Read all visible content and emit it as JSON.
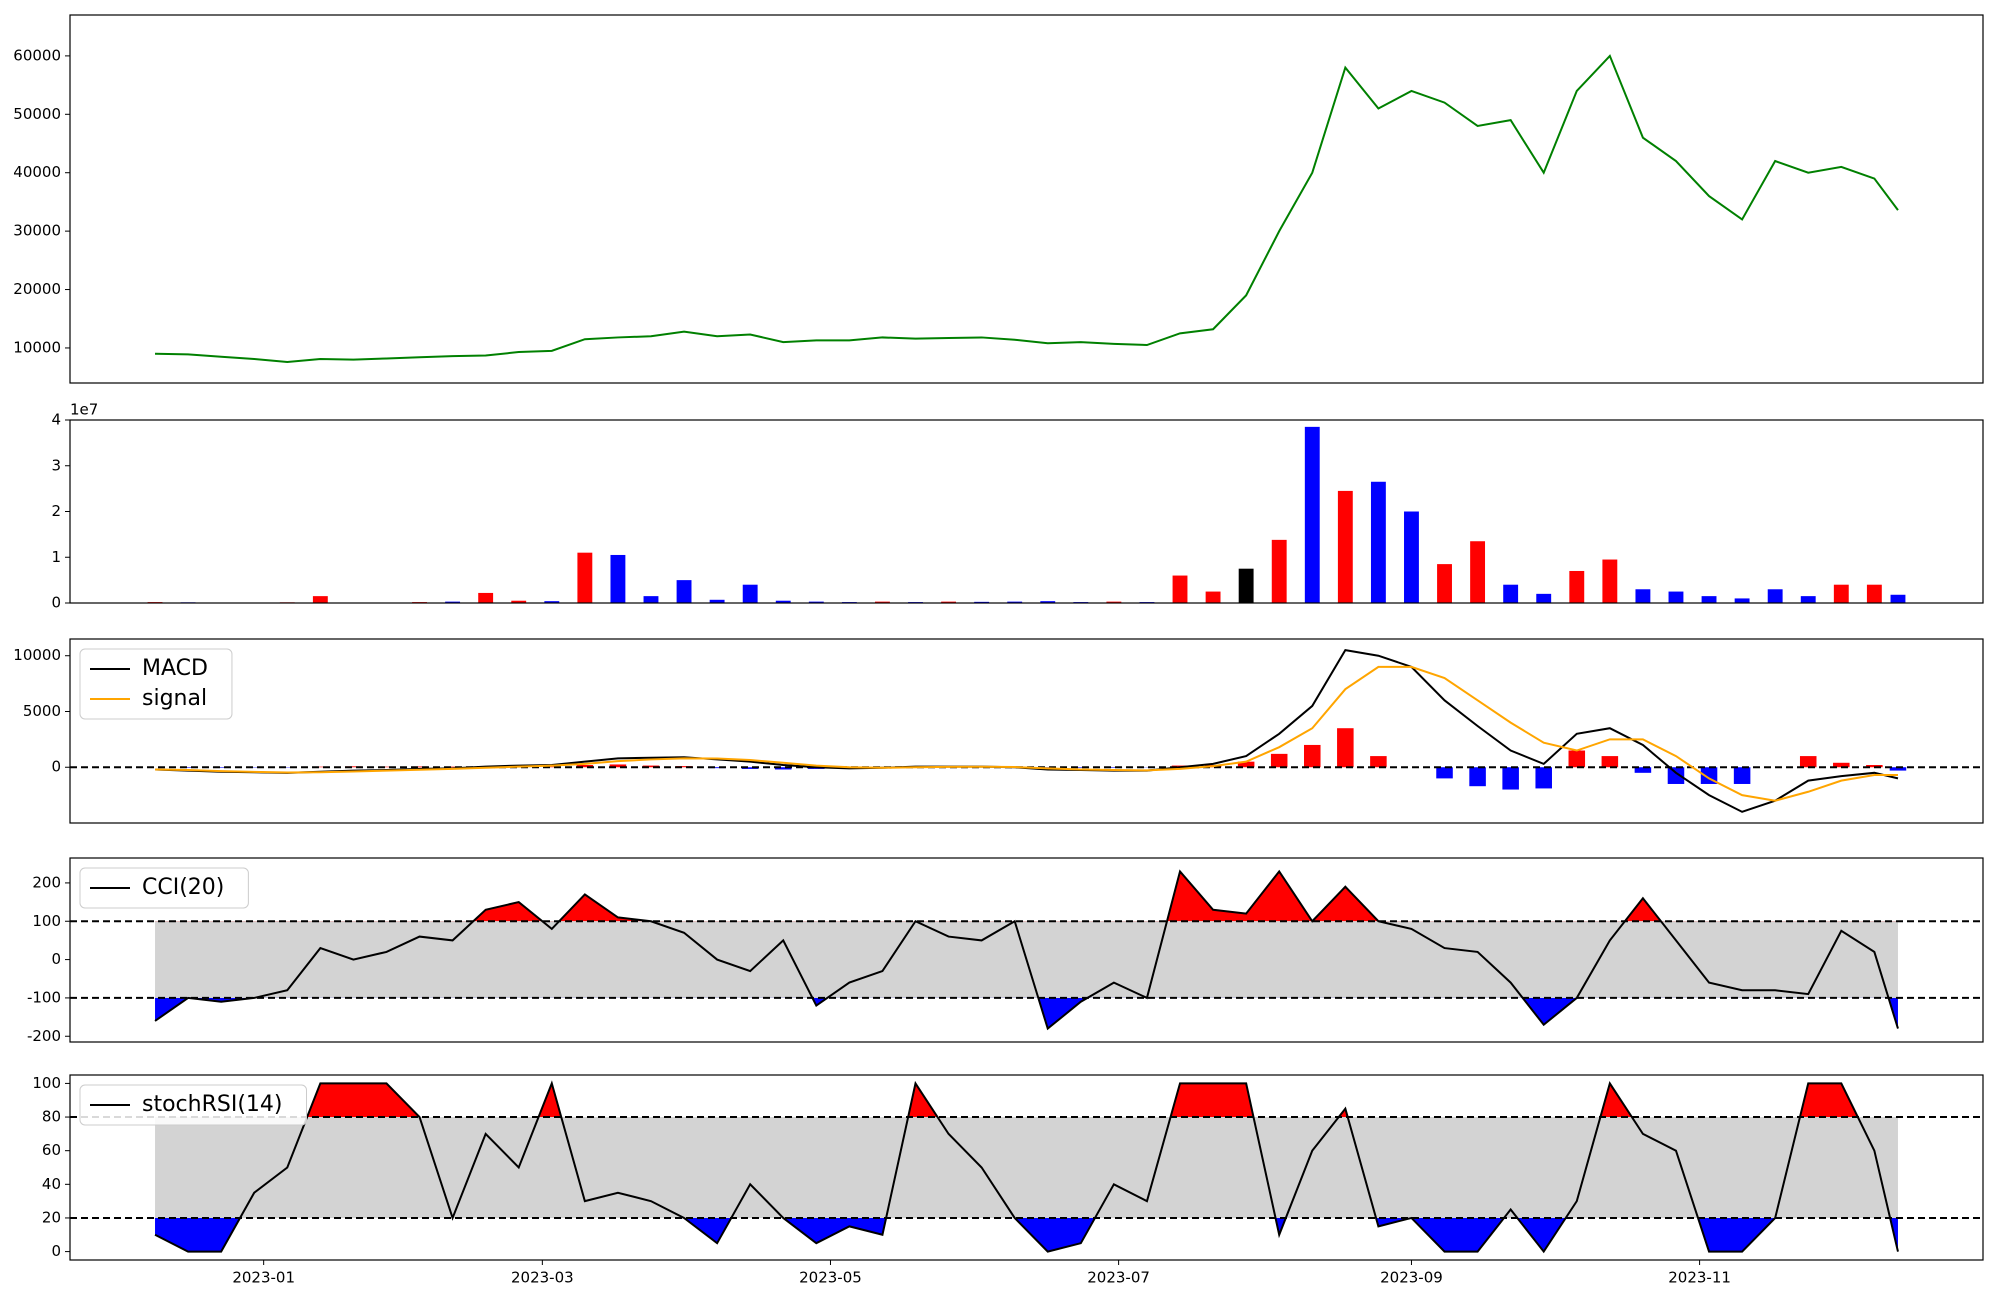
{
  "chart_data": [
    {
      "type": "line",
      "x": [
        -23,
        -16,
        -9,
        -2,
        5,
        12,
        19,
        26,
        33,
        40,
        47,
        54,
        61,
        68,
        75,
        82,
        89,
        96,
        103,
        110,
        117,
        124,
        131,
        138,
        145,
        152,
        159,
        166,
        173,
        180,
        187,
        194,
        201,
        208,
        215,
        222,
        229,
        236,
        243,
        250,
        257,
        264,
        271,
        278,
        285,
        292,
        299,
        306,
        313,
        320,
        327,
        334,
        341,
        346
      ],
      "series": [
        {
          "color": "green",
          "values": [
            9000,
            8900,
            8500,
            8100,
            7600,
            8100,
            8000,
            8200,
            8400,
            8600,
            8700,
            9300,
            9500,
            11500,
            11800,
            12000,
            12800,
            12000,
            12300,
            11000,
            11300,
            11300,
            11800,
            11600,
            11700,
            11800,
            11400,
            10800,
            11000,
            10700,
            10500,
            12500,
            13200,
            19000,
            30000,
            40000,
            58000,
            51000,
            54000,
            52000,
            48000,
            49000,
            40000,
            54000,
            60000,
            46000,
            42000,
            36000,
            32000,
            42000,
            40000,
            41000,
            39000,
            33600
          ]
        }
      ],
      "xlim": [
        -41,
        364
      ],
      "ylim": [
        4000,
        67000
      ],
      "yticks": [
        10000,
        20000,
        30000,
        40000,
        50000,
        60000
      ]
    },
    {
      "type": "bar",
      "x": [
        -23,
        -16,
        -9,
        -2,
        5,
        12,
        19,
        26,
        33,
        40,
        47,
        54,
        61,
        68,
        75,
        82,
        89,
        96,
        103,
        110,
        117,
        124,
        131,
        138,
        145,
        152,
        159,
        166,
        173,
        180,
        187,
        194,
        201,
        208,
        215,
        222,
        229,
        236,
        243,
        250,
        257,
        264,
        271,
        278,
        285,
        292,
        299,
        306,
        313,
        320,
        327,
        334,
        341,
        346
      ],
      "values": [
        200000,
        150000,
        100000,
        100000,
        150000,
        1500000,
        100000,
        100000,
        200000,
        300000,
        2200000,
        500000,
        400000,
        11000000,
        10500000,
        1500000,
        5000000,
        700000,
        4000000,
        500000,
        300000,
        200000,
        300000,
        200000,
        300000,
        250000,
        300000,
        400000,
        200000,
        300000,
        200000,
        6000000,
        2500000,
        7500000,
        13800000,
        38500000,
        24500000,
        26500000,
        20000000,
        8500000,
        13500000,
        4000000,
        2000000,
        7000000,
        9500000,
        3000000,
        2500000,
        1500000,
        1000000,
        3000000,
        1500000,
        4000000,
        4000000,
        1800000
      ],
      "colors": [
        "red",
        "blue",
        "red",
        "blue",
        "red",
        "red",
        "blue",
        "red",
        "red",
        "blue",
        "red",
        "red",
        "blue",
        "red",
        "blue",
        "blue",
        "blue",
        "blue",
        "blue",
        "blue",
        "blue",
        "blue",
        "red",
        "blue",
        "red",
        "blue",
        "blue",
        "blue",
        "blue",
        "red",
        "blue",
        "red",
        "red",
        "black",
        "red",
        "blue",
        "red",
        "blue",
        "blue",
        "red",
        "red",
        "blue",
        "blue",
        "red",
        "red",
        "blue",
        "blue",
        "blue",
        "blue",
        "blue",
        "blue",
        "red",
        "red",
        "blue"
      ],
      "xlim": [
        -41,
        364
      ],
      "ylim": [
        0,
        40000000
      ],
      "yticks": [
        0,
        {
          "value": 10000000,
          "label": "1"
        },
        {
          "value": 20000000,
          "label": "2"
        },
        {
          "value": 30000000,
          "label": "3"
        },
        {
          "value": 40000000,
          "label": "4"
        }
      ],
      "offset_label": "1e7"
    },
    {
      "type": "line",
      "x": [
        -23,
        -16,
        -9,
        -2,
        5,
        12,
        19,
        26,
        33,
        40,
        47,
        54,
        61,
        68,
        75,
        82,
        89,
        96,
        103,
        110,
        117,
        124,
        131,
        138,
        145,
        152,
        159,
        166,
        173,
        180,
        187,
        194,
        201,
        208,
        215,
        222,
        229,
        236,
        243,
        250,
        257,
        264,
        271,
        278,
        285,
        292,
        299,
        306,
        313,
        320,
        327,
        334,
        341,
        346
      ],
      "series": [
        {
          "name": "MACD",
          "color": "black",
          "values": [
            -200,
            -300,
            -400,
            -450,
            -500,
            -400,
            -300,
            -250,
            -150,
            -100,
            50,
            150,
            200,
            500,
            800,
            850,
            900,
            700,
            500,
            200,
            0,
            -100,
            -50,
            50,
            50,
            50,
            0,
            -200,
            -250,
            -300,
            -300,
            0,
            300,
            1000,
            3000,
            5500,
            10500,
            10000,
            9000,
            6000,
            3700,
            1500,
            300,
            3000,
            3500,
            2000,
            -500,
            -2500,
            -4000,
            -3000,
            -1200,
            -800,
            -500,
            -1000
          ]
        },
        {
          "name": "signal",
          "color": "orange",
          "values": [
            -200,
            -250,
            -350,
            -420,
            -470,
            -450,
            -380,
            -300,
            -220,
            -150,
            -50,
            50,
            150,
            300,
            550,
            700,
            800,
            780,
            650,
            400,
            150,
            0,
            -50,
            0,
            30,
            40,
            20,
            -100,
            -200,
            -250,
            -280,
            -150,
            100,
            500,
            1800,
            3500,
            7000,
            9000,
            9000,
            8000,
            6000,
            4000,
            2200,
            1500,
            2500,
            2500,
            1000,
            -1000,
            -2500,
            -3000,
            -2200,
            -1200,
            -700,
            -700
          ]
        }
      ],
      "histogram": [
        0,
        -50,
        -50,
        -30,
        -30,
        50,
        80,
        50,
        70,
        50,
        100,
        100,
        50,
        200,
        250,
        150,
        100,
        -80,
        -150,
        -200,
        -150,
        -100,
        0,
        50,
        20,
        10,
        -20,
        -100,
        -50,
        -50,
        -20,
        150,
        200,
        500,
        1200,
        2000,
        3500,
        1000,
        0,
        -1000,
        -1700,
        -2000,
        -1900,
        1500,
        1000,
        -500,
        -1500,
        -1500,
        -1500,
        0,
        1000,
        400,
        200,
        -300
      ],
      "positive_color": "red",
      "negative_color": "blue",
      "hlines": [
        0
      ],
      "xlim": [
        -41,
        364
      ],
      "ylim": [
        -5000,
        11500
      ],
      "yticks": [
        0,
        5000,
        10000
      ],
      "legend": "upper left"
    },
    {
      "type": "line",
      "x": [
        -23,
        -16,
        -9,
        -2,
        5,
        12,
        19,
        26,
        33,
        40,
        47,
        54,
        61,
        68,
        75,
        82,
        89,
        96,
        103,
        110,
        117,
        124,
        131,
        138,
        145,
        152,
        159,
        166,
        173,
        180,
        187,
        194,
        201,
        208,
        215,
        222,
        229,
        236,
        243,
        250,
        257,
        264,
        271,
        278,
        285,
        292,
        299,
        306,
        313,
        320,
        327,
        334,
        341,
        346
      ],
      "series": [
        {
          "name": "CCI(20)",
          "color": "black",
          "values": [
            -160,
            -100,
            -110,
            -100,
            -80,
            30,
            0,
            20,
            60,
            50,
            130,
            150,
            80,
            170,
            110,
            100,
            70,
            0,
            -30,
            50,
            -120,
            -60,
            -30,
            100,
            60,
            50,
            100,
            -180,
            -110,
            -60,
            -100,
            230,
            130,
            120,
            230,
            100,
            190,
            100,
            80,
            30,
            20,
            -60,
            -170,
            -100,
            50,
            160,
            50,
            -60,
            -80,
            -80,
            -90,
            75,
            20,
            -180
          ]
        }
      ],
      "hlines": [
        100,
        -100
      ],
      "band_color": "lightgray",
      "above_color": "red",
      "below_color": "blue",
      "xlim": [
        -41,
        364
      ],
      "ylim": [
        -215,
        265
      ],
      "yticks": [
        -200,
        -100,
        0,
        100,
        200
      ],
      "legend": "upper left"
    },
    {
      "type": "line",
      "x": [
        -23,
        -16,
        -9,
        -2,
        5,
        12,
        19,
        26,
        33,
        40,
        47,
        54,
        61,
        68,
        75,
        82,
        89,
        96,
        103,
        110,
        117,
        124,
        131,
        138,
        145,
        152,
        159,
        166,
        173,
        180,
        187,
        194,
        201,
        208,
        215,
        222,
        229,
        236,
        243,
        250,
        257,
        264,
        271,
        278,
        285,
        292,
        299,
        306,
        313,
        320,
        327,
        334,
        341,
        346
      ],
      "series": [
        {
          "name": "stochRSI(14)",
          "color": "black",
          "values": [
            10,
            0,
            0,
            35,
            50,
            100,
            100,
            100,
            80,
            20,
            70,
            50,
            100,
            30,
            35,
            30,
            20,
            5,
            40,
            20,
            5,
            15,
            10,
            100,
            70,
            50,
            20,
            0,
            5,
            40,
            30,
            100,
            100,
            100,
            10,
            60,
            85,
            15,
            20,
            0,
            0,
            25,
            0,
            30,
            100,
            70,
            60,
            0,
            0,
            20,
            100,
            100,
            60,
            0
          ]
        }
      ],
      "hlines": [
        80,
        20
      ],
      "band_color": "lightgray",
      "above_color": "red",
      "below_color": "blue",
      "xlim": [
        -41,
        364
      ],
      "ylim": [
        -5,
        105
      ],
      "yticks": [
        0,
        20,
        40,
        60,
        80,
        100
      ],
      "legend": "upper left",
      "xticks": [
        {
          "value": 0,
          "label": "2023-01"
        },
        {
          "value": 59,
          "label": "2023-03"
        },
        {
          "value": 120,
          "label": "2023-05"
        },
        {
          "value": 181,
          "label": "2023-07"
        },
        {
          "value": 243,
          "label": "2023-09"
        },
        {
          "value": 304,
          "label": "2023-11"
        }
      ]
    }
  ]
}
